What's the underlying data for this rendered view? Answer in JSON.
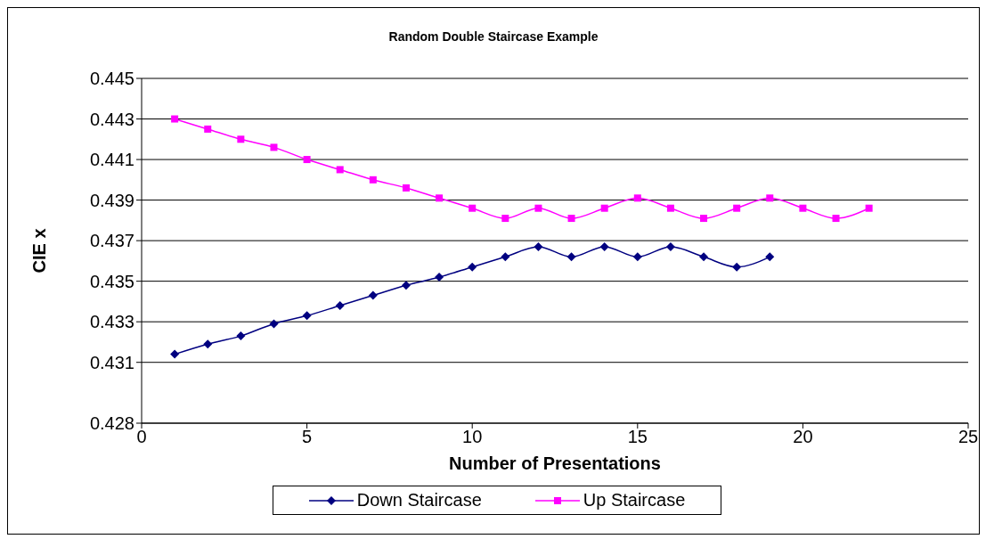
{
  "chart_data": {
    "type": "line",
    "title": "Random Double Staircase Example",
    "xlabel": "Number of Presentations",
    "ylabel": "CIE x",
    "x": [
      1,
      2,
      3,
      4,
      5,
      6,
      7,
      8,
      9,
      10,
      11,
      12,
      13,
      14,
      15,
      16,
      17,
      18,
      19,
      20,
      21,
      22
    ],
    "series": [
      {
        "name": "Down Staircase",
        "color": "#000080",
        "marker": "diamond",
        "values": [
          0.4314,
          0.4319,
          0.4323,
          0.4329,
          0.4333,
          0.4338,
          0.4343,
          0.4348,
          0.4352,
          0.4357,
          0.4362,
          0.4367,
          0.4362,
          0.4367,
          0.4362,
          0.4367,
          0.4362,
          0.4357,
          0.4362,
          null,
          null,
          null
        ]
      },
      {
        "name": "Up Staircase",
        "color": "#ff00ff",
        "marker": "square",
        "values": [
          0.443,
          0.4425,
          0.442,
          0.4416,
          0.441,
          0.4405,
          0.44,
          0.4396,
          0.4391,
          0.4386,
          0.4381,
          0.4386,
          0.4381,
          0.4386,
          0.4391,
          0.4386,
          0.4381,
          0.4386,
          0.4391,
          0.4386,
          0.4381,
          0.4386
        ]
      }
    ],
    "xlim": [
      0,
      25
    ],
    "xticks": [
      0,
      5,
      10,
      15,
      20,
      25
    ],
    "ylim": [
      0.428,
      0.445
    ],
    "yticks": [
      0.428,
      0.431,
      0.433,
      0.435,
      0.437,
      0.439,
      0.441,
      0.443,
      0.445
    ],
    "grid": "y",
    "legend": "bottom",
    "line_style": "solid"
  }
}
